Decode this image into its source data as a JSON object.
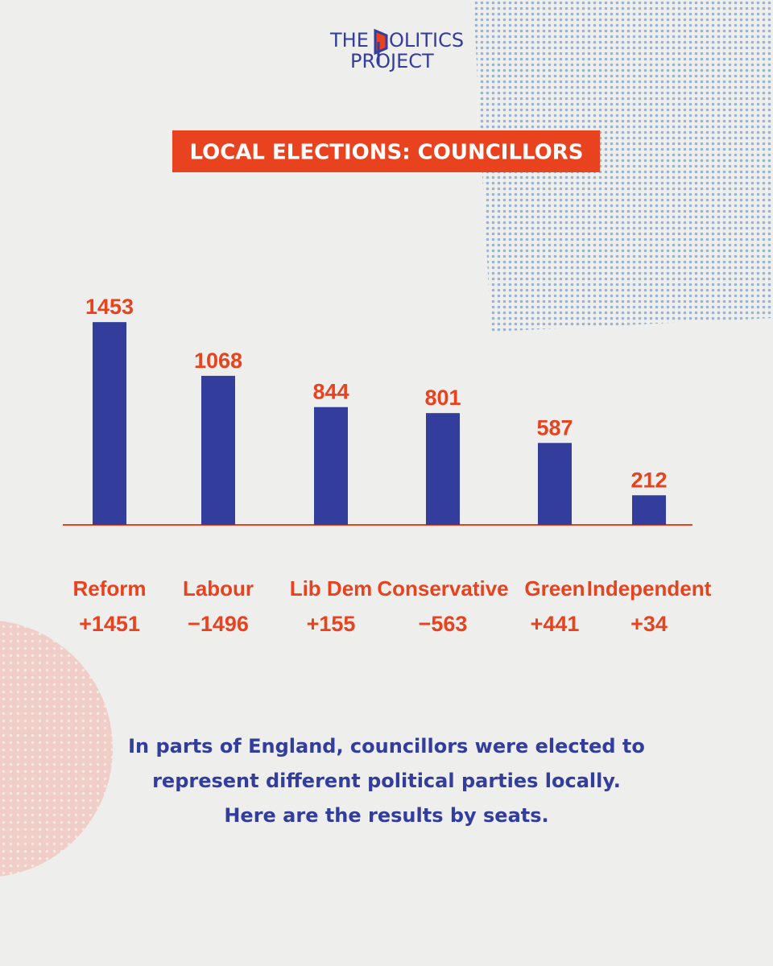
{
  "logo": {
    "line1": "THE",
    "line1_rest": "OLITICS",
    "line2": "PROJECT"
  },
  "chart_data": {
    "type": "bar",
    "title": "LOCAL ELECTIONS: COUNCILLORS",
    "categories": [
      "Reform",
      "Labour",
      "Lib Dem",
      "Conservative",
      "Green",
      "Independent"
    ],
    "values": [
      1453,
      1068,
      844,
      801,
      587,
      212
    ],
    "change_labels": [
      "+1451",
      "−1496",
      "+155",
      "−563",
      "+441",
      "+34"
    ],
    "color": "#323d9c",
    "label_color": "#e8421e",
    "ylim": [
      0,
      1500
    ]
  },
  "footer": {
    "lines": [
      "In parts of England, councillors were elected to",
      "represent different political parties locally.",
      "Here are the results by seats."
    ]
  }
}
